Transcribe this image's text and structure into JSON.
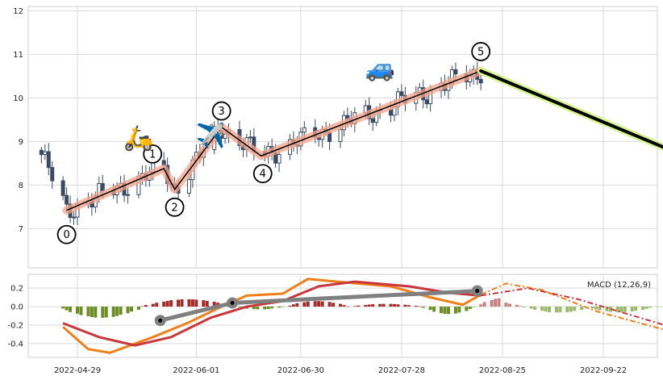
{
  "chart_data": {
    "type": "candlestick",
    "title": "",
    "price_panel": {
      "ylim": [
        6.1,
        12.1
      ],
      "yticks": [
        "7",
        "8",
        "9",
        "10",
        "11",
        "12"
      ],
      "grid": true,
      "elliott_wave": {
        "labels": [
          "0",
          "1",
          "2",
          "3",
          "4",
          "5"
        ],
        "points": [
          {
            "x": "2022-04-26",
            "y": 7.42
          },
          {
            "x": "2022-05-23",
            "y": 8.38
          },
          {
            "x": "2022-05-26",
            "y": 7.9
          },
          {
            "x": "2022-06-08",
            "y": 9.33
          },
          {
            "x": "2022-06-19",
            "y": 8.67
          },
          {
            "x": "2022-08-19",
            "y": 10.62
          }
        ],
        "projection": [
          {
            "x": "2022-08-19",
            "y": 10.62
          },
          {
            "x": "2022-10-09",
            "y": 8.86
          }
        ]
      },
      "icons": [
        {
          "name": "scooter-icon",
          "glyph": "🛵",
          "x": "2022-05-16",
          "y": 8.9
        },
        {
          "name": "airplane-icon",
          "glyph": "✈️",
          "x": "2022-06-05",
          "y": 8.95
        },
        {
          "name": "car-icon",
          "glyph": "🚙",
          "x": "2022-07-22",
          "y": 10.5
        }
      ]
    },
    "macd_panel": {
      "label": "MACD (12,26,9)",
      "ylim": [
        -0.55,
        0.35
      ],
      "yticks": [
        "0.2",
        "0.0",
        "-0.2",
        "-0.4"
      ],
      "histogram_colors": {
        "neg": "#6b8e23",
        "pos": "#a52a2a",
        "neg_projection": "#9cb86a",
        "pos_projection": "#c98080"
      },
      "divergence_line": [
        {
          "x": "2022-05-22",
          "y": -0.15
        },
        {
          "x": "2022-06-11",
          "y": 0.04
        },
        {
          "x": "2022-08-18",
          "y": 0.17
        }
      ]
    },
    "x_ticks": [
      "2022-04-29",
      "2022-06-01",
      "2022-06-30",
      "2022-07-28",
      "2022-08-25",
      "2022-09-22"
    ],
    "colors": {
      "candle_down": "#3a4a63",
      "candle_up": "#ffffff",
      "wave_line": "#000000",
      "wave_band": "#f4a38a",
      "projection_band": "#d4f58a",
      "macd_line": "#f07f1a",
      "signal_line": "#c8373b",
      "divergence": "#808080",
      "grid": "#d9d9d9"
    }
  }
}
